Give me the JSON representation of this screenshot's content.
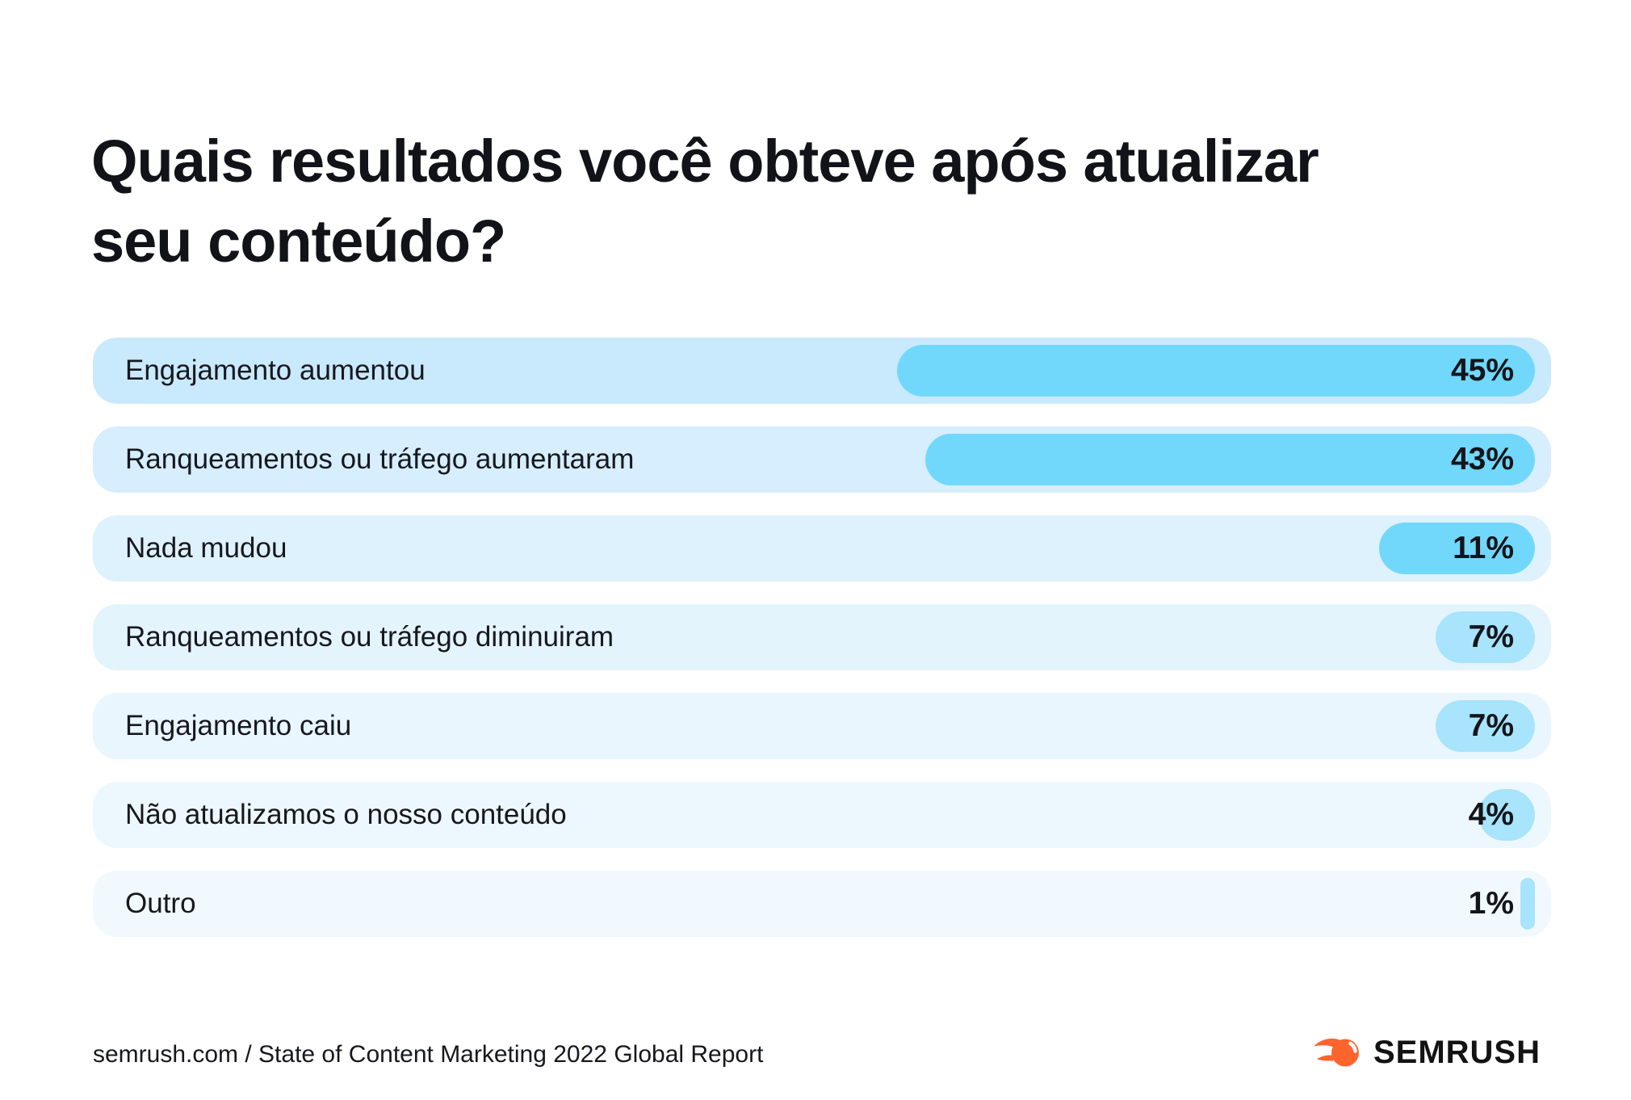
{
  "title": {
    "lines": [
      "Quais resultados você obteve após atualizar",
      "seu conteúdo?"
    ]
  },
  "chart_data": {
    "type": "bar",
    "orientation": "horizontal",
    "title": "Quais resultados você obteve após atualizar seu conteúdo?",
    "unit": "%",
    "categories": [
      "Engajamento aumentou",
      "Ranqueamentos ou tráfego aumentaram",
      "Nada mudou",
      "Ranqueamentos ou tráfego diminuiram",
      "Engajamento caiu",
      "Não atualizamos o nosso conteúdo",
      "Outro"
    ],
    "values": [
      45,
      43,
      11,
      7,
      7,
      4,
      1
    ],
    "value_labels": [
      "45%",
      "43%",
      "11%",
      "7%",
      "7%",
      "4%",
      "1%"
    ],
    "bars_alignment": "right",
    "bar_colors": [
      "#71D8FB",
      "#71D8FB",
      "#71D8FB",
      "#A8E4FB",
      "#A8E4FB",
      "#A8E4FB",
      "#A8E4FB"
    ],
    "track_colors": [
      "#C9E9FC",
      "#D6EEFD",
      "#DEF2FD",
      "#E4F4FD",
      "#E9F6FE",
      "#EDF8FE",
      "#F1F9FE"
    ],
    "grid": false,
    "legend": false
  },
  "footer": {
    "source": "semrush.com / State of Content Marketing 2022 Global Report",
    "logo_text": "SEMRUSH",
    "logo_orange": "#FF642D",
    "logo_text_color": "#131313"
  }
}
